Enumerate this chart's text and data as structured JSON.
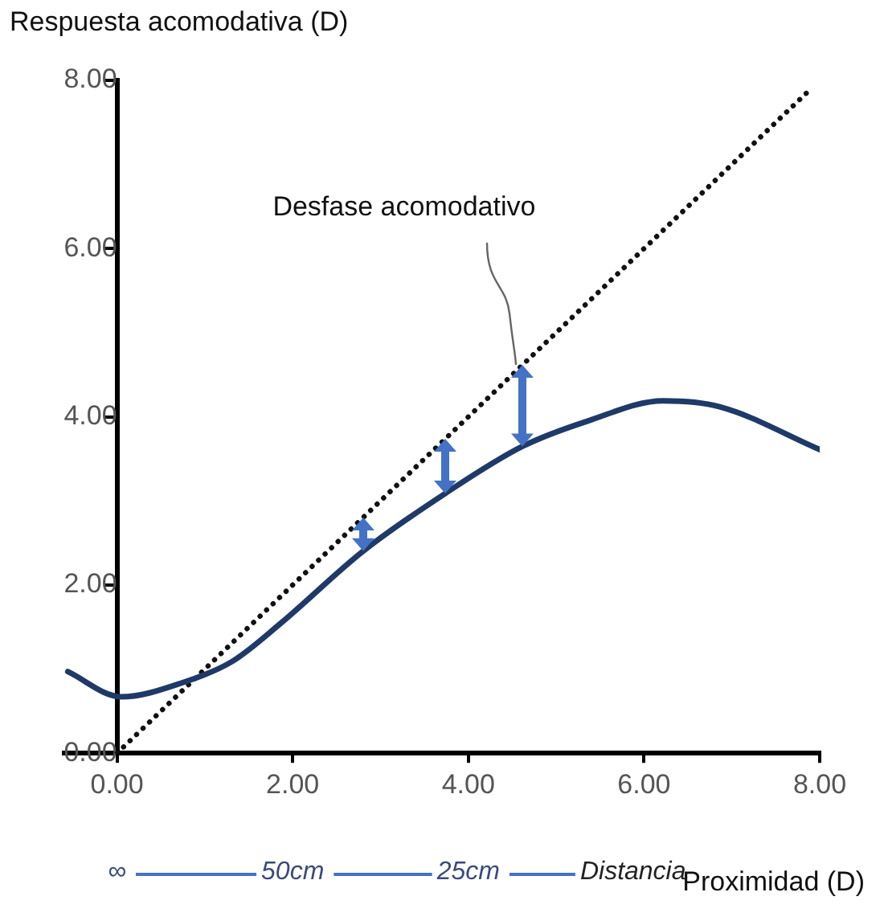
{
  "chart_data": {
    "type": "line",
    "xlabel": "Proximidad (D)",
    "ylabel": "Respuesta acomodativa (D)",
    "annotations": [
      {
        "text": "Desfase acomodativo",
        "x": 4.55,
        "y": 4.55
      },
      "∞",
      "50cm",
      "25cm",
      "Distancia"
    ],
    "xlim": [
      -0.6,
      8
    ],
    "ylim": [
      0,
      8
    ],
    "xticks": [
      {
        "value": 0,
        "label": "0.00"
      },
      {
        "value": 2,
        "label": "2.00"
      },
      {
        "value": 4,
        "label": "4.00"
      },
      {
        "value": 6,
        "label": "6.00"
      },
      {
        "value": 8,
        "label": "8.00"
      }
    ],
    "yticks": [
      {
        "value": 0,
        "label": "0.00"
      },
      {
        "value": 2,
        "label": "2.00"
      },
      {
        "value": 4,
        "label": "4.00"
      },
      {
        "value": 6,
        "label": "6.00"
      },
      {
        "value": 8,
        "label": "8.00"
      }
    ],
    "grid": false,
    "legend": false,
    "marker": "none",
    "series": [
      {
        "type": "line",
        "color": "#1f3a68",
        "line_style": "solid",
        "x": [
          -0.56,
          0.05,
          0.75,
          1.31,
          1.87,
          2.8,
          3.74,
          4.62,
          5.36,
          6.22,
          6.86,
          8.0
        ],
        "values": [
          0.97,
          0.67,
          0.84,
          1.09,
          1.55,
          2.4,
          3.09,
          3.65,
          3.95,
          4.19,
          4.12,
          3.61
        ]
      },
      {
        "type": "line",
        "color": "#111111",
        "line_style": "dotted",
        "x": [
          0,
          7.9
        ],
        "values": [
          0,
          7.9
        ]
      }
    ]
  }
}
